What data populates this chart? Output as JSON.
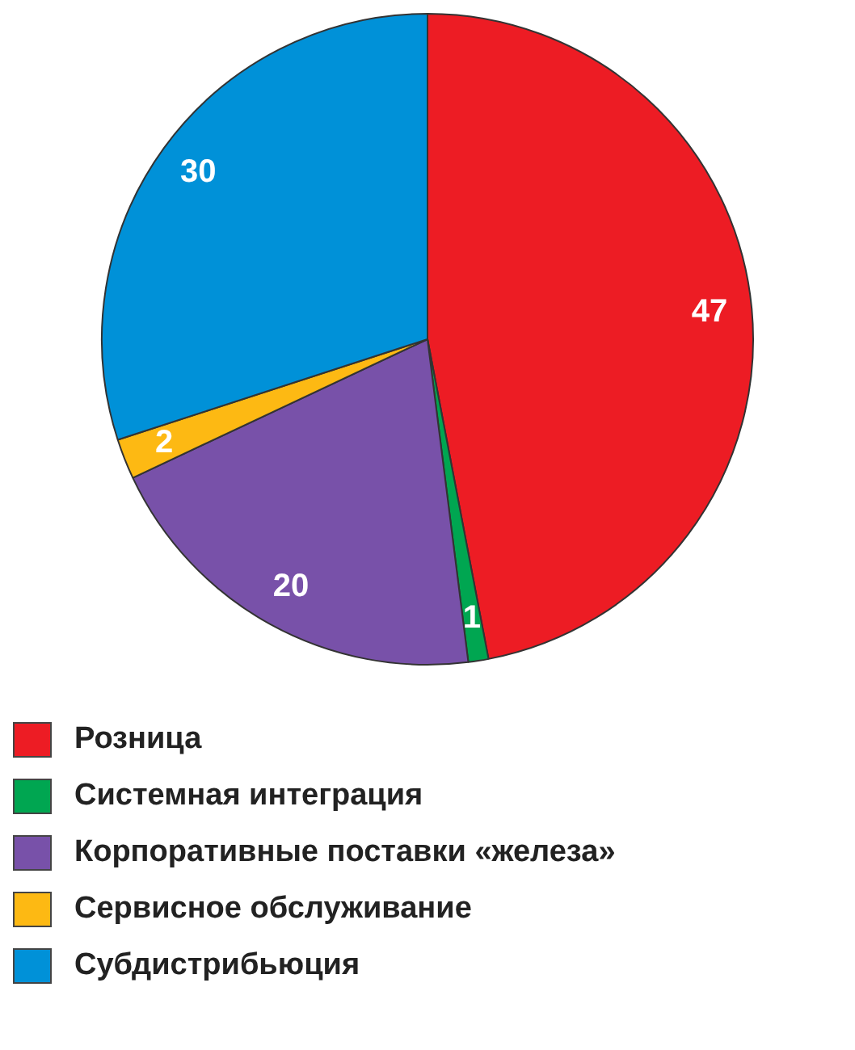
{
  "chart_data": {
    "type": "pie",
    "categories": [
      "Розница",
      "Системная интеграция",
      "Корпоративные поставки «железа»",
      "Сервисное обслуживание",
      "Субдистрибьюция"
    ],
    "values": [
      47,
      1,
      20,
      2,
      30
    ],
    "colors": [
      "#ed1c24",
      "#00a651",
      "#7851a9",
      "#fdb913",
      "#0091d8"
    ],
    "data_labels": true,
    "legend": "bottom"
  }
}
